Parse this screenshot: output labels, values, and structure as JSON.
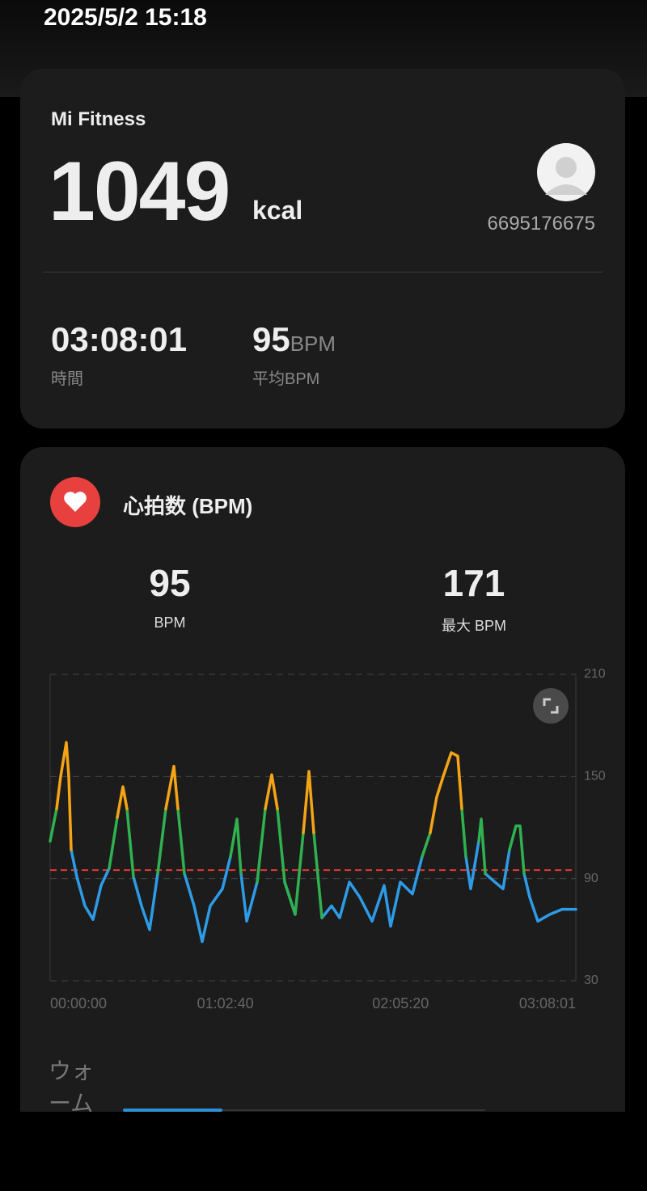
{
  "status_time": "2025/5/2 15:18",
  "summary": {
    "app": "Mi Fitness",
    "calories": 1049,
    "calories_unit": "kcal",
    "user_id": "6695176675",
    "duration": "03:08:01",
    "duration_label": "時間",
    "avg_bpm": 95,
    "avg_bpm_unit": "BPM",
    "avg_bpm_label": "平均BPM"
  },
  "heart_rate": {
    "title": "心拍数 (BPM)",
    "avg": {
      "value": 95,
      "label": "BPM"
    },
    "max": {
      "value": 171,
      "label": "最大 BPM"
    }
  },
  "chart_data": {
    "type": "line",
    "x": [
      0,
      139,
      226,
      347,
      399,
      451,
      573,
      746,
      920,
      1093,
      1267,
      1440,
      1562,
      1649,
      1788,
      1961,
      2135,
      2308,
      2482,
      2655,
      2742,
      2881,
      3089,
      3263,
      3436,
      3697,
      3870,
      4009,
      4096,
      4217,
      4443,
      4616,
      4755,
      4877,
      5033,
      5259,
      5432,
      5554,
      5658,
      5831,
      6040,
      6213,
      6421,
      6647,
      6907,
      7168,
      7306,
      7515,
      7775,
      7983,
      8157,
      8296,
      8435,
      8608,
      8747,
      8834,
      8921,
      9025,
      9199,
      9251,
      9337,
      9546,
      9719,
      9858,
      9997,
      10084,
      10171,
      10292,
      10466,
      10726,
      10986,
      11281
    ],
    "series": [
      {
        "color": "#2d9be6",
        "values": [
          null,
          null,
          null,
          null,
          null,
          107,
          91,
          74,
          66,
          86,
          96,
          null,
          null,
          null,
          91,
          74,
          60,
          93,
          null,
          null,
          null,
          93,
          74,
          53,
          74,
          84,
          103,
          null,
          93,
          65,
          88,
          null,
          null,
          null,
          88,
          69,
          null,
          null,
          null,
          67,
          74,
          67,
          88,
          79,
          65,
          86,
          62,
          88,
          81,
          103,
          null,
          null,
          null,
          null,
          null,
          null,
          103,
          84,
          112,
          null,
          93,
          88,
          84,
          107,
          null,
          null,
          93,
          79,
          65,
          69,
          72,
          72
        ]
      },
      {
        "color": "#2fb14f",
        "values": [
          112,
          131,
          null,
          null,
          null,
          null,
          null,
          null,
          null,
          null,
          96,
          126,
          null,
          131,
          91,
          null,
          null,
          93,
          131,
          null,
          131,
          93,
          null,
          null,
          null,
          null,
          103,
          125,
          93,
          null,
          88,
          131,
          null,
          131,
          88,
          69,
          117,
          null,
          117,
          67,
          null,
          null,
          null,
          null,
          null,
          null,
          null,
          null,
          null,
          103,
          117,
          null,
          null,
          null,
          null,
          131,
          103,
          null,
          112,
          125,
          93,
          null,
          null,
          107,
          121,
          121,
          93,
          null,
          null,
          null,
          null,
          null
        ]
      },
      {
        "color": "#f5a416",
        "values": [
          null,
          131,
          150,
          170,
          150,
          107,
          null,
          null,
          null,
          null,
          null,
          126,
          144,
          131,
          null,
          null,
          null,
          null,
          131,
          156,
          131,
          null,
          null,
          null,
          null,
          null,
          null,
          null,
          null,
          null,
          null,
          131,
          151,
          131,
          null,
          null,
          117,
          153,
          117,
          null,
          null,
          null,
          null,
          null,
          null,
          null,
          null,
          null,
          null,
          null,
          117,
          138,
          150,
          164,
          162,
          131,
          null,
          null,
          null,
          null,
          null,
          null,
          null,
          null,
          null,
          null,
          null,
          null,
          null,
          null,
          null,
          null
        ]
      }
    ],
    "xlim": [
      0,
      11281
    ],
    "xticks": [
      {
        "value": 0,
        "label": "00:00:00"
      },
      {
        "value": 3760,
        "label": "01:02:40"
      },
      {
        "value": 7520,
        "label": "02:05:20"
      },
      {
        "value": 11281,
        "label": "03:08:01"
      }
    ],
    "ylim": [
      30,
      210
    ],
    "yticks": [
      30,
      90,
      150,
      210
    ],
    "grid": true,
    "reference_color": "#e53935"
  },
  "warmup": {
    "label": "ウォーム"
  }
}
